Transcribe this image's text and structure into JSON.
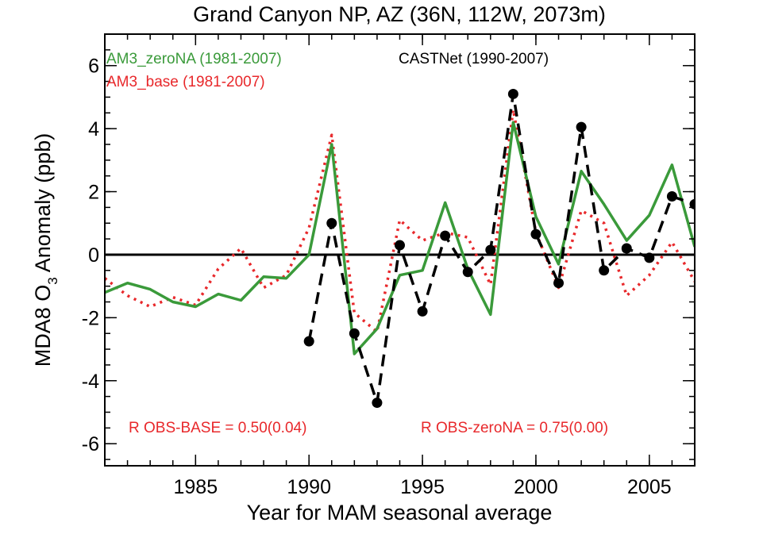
{
  "chart_data": {
    "type": "line",
    "title": "Grand Canyon NP, AZ (36N, 112W, 2073m)",
    "xlabel": "Year for MAM seasonal average",
    "ylabel_main": "MDA8 O",
    "ylabel_sub": "3",
    "ylabel_rest": " Anomaly (ppb)",
    "xlim": [
      1981,
      2007
    ],
    "ylim": [
      -6.7,
      7.0
    ],
    "xticks": [
      1985,
      1990,
      1995,
      2000,
      2005
    ],
    "xtick_labels": [
      "1985",
      "1990",
      "1995",
      "2000",
      "2005"
    ],
    "yticks": [
      -6,
      -4,
      -2,
      0,
      2,
      4,
      6
    ],
    "ytick_labels": [
      "-6",
      "-4",
      "-2",
      "0",
      "2",
      "4",
      "6"
    ],
    "zero_line": true,
    "series": [
      {
        "name": "AM3_zeroNA (1981-2007)",
        "color": "#3a9a3a",
        "style": "solid",
        "x": [
          1981,
          1982,
          1983,
          1984,
          1985,
          1986,
          1987,
          1988,
          1989,
          1990,
          1991,
          1992,
          1993,
          1994,
          1995,
          1996,
          1997,
          1998,
          1999,
          2000,
          2001,
          2002,
          2003,
          2004,
          2005,
          2006,
          2007
        ],
        "y": [
          -1.2,
          -0.9,
          -1.1,
          -1.5,
          -1.65,
          -1.25,
          -1.45,
          -0.7,
          -0.75,
          0.0,
          3.5,
          -3.15,
          -2.35,
          -0.65,
          -0.5,
          1.65,
          -0.45,
          -1.9,
          4.2,
          1.2,
          -0.3,
          2.65,
          1.6,
          0.45,
          1.25,
          2.85,
          0.25
        ]
      },
      {
        "name": "AM3_base (1981-2007)",
        "color": "#e8282b",
        "style": "dotted",
        "x": [
          1981,
          1982,
          1983,
          1984,
          1985,
          1986,
          1987,
          1988,
          1989,
          1990,
          1991,
          1992,
          1993,
          1994,
          1995,
          1996,
          1997,
          1998,
          1999,
          2000,
          2001,
          2002,
          2003,
          2004,
          2005,
          2006,
          2007
        ],
        "y": [
          -0.75,
          -1.3,
          -1.65,
          -1.35,
          -1.6,
          -0.45,
          0.2,
          -1.05,
          -0.65,
          0.85,
          3.8,
          -1.85,
          -2.45,
          1.1,
          0.45,
          0.7,
          0.55,
          -0.95,
          4.6,
          0.7,
          -1.05,
          1.4,
          1.0,
          -1.3,
          -0.65,
          0.4,
          -0.85
        ]
      },
      {
        "name": "CASTNet (1990-2007)",
        "color": "#000000",
        "style": "dashed-markers",
        "x": [
          1990,
          1991,
          1992,
          1993,
          1994,
          1995,
          1996,
          1997,
          1998,
          1999,
          2000,
          2001,
          2002,
          2003,
          2004,
          2005,
          2006,
          2007
        ],
        "y": [
          -2.75,
          1.0,
          -2.5,
          -4.7,
          0.3,
          -1.8,
          0.6,
          -0.55,
          0.15,
          5.1,
          0.65,
          -0.9,
          4.05,
          -0.5,
          0.2,
          -0.1,
          1.85,
          1.6
        ]
      }
    ],
    "legend_location": "top-left",
    "annotations": [
      "R OBS-BASE =  0.50(0.04)",
      "R OBS-zeroNA =  0.75(0.00)"
    ]
  }
}
